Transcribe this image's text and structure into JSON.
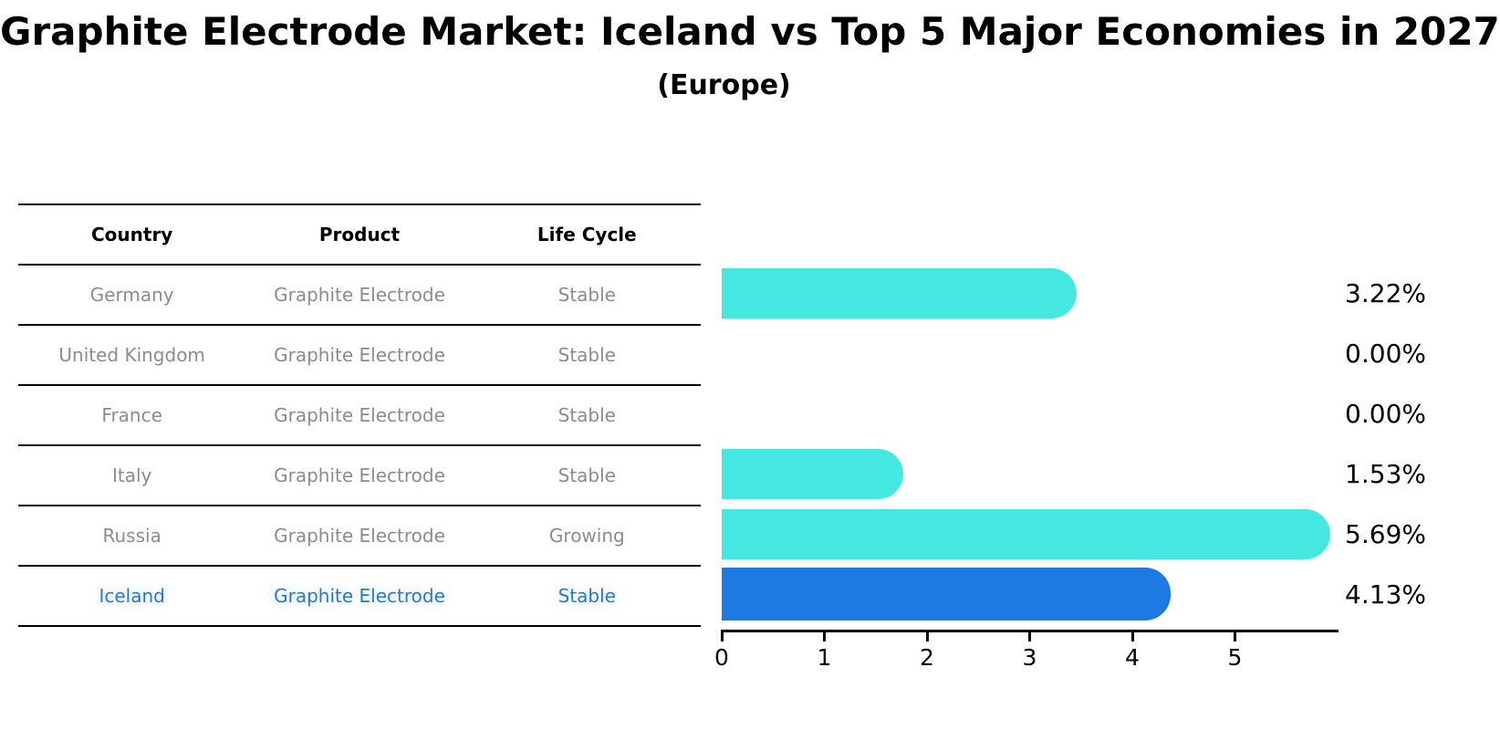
{
  "title": "Graphite Electrode Market: Iceland vs Top 5 Major Economies in 2027",
  "subtitle": "(Europe)",
  "table": {
    "headers": [
      "Country",
      "Product",
      "Life Cycle"
    ],
    "rows": [
      {
        "country": "Germany",
        "product": "Graphite Electrode",
        "life_cycle": "Stable",
        "highlight": false
      },
      {
        "country": "United Kingdom",
        "product": "Graphite Electrode",
        "life_cycle": "Stable",
        "highlight": false
      },
      {
        "country": "France",
        "product": "Graphite Electrode",
        "life_cycle": "Stable",
        "highlight": false
      },
      {
        "country": "Italy",
        "product": "Graphite Electrode",
        "life_cycle": "Stable",
        "highlight": false
      },
      {
        "country": "Russia",
        "product": "Graphite Electrode",
        "life_cycle": "Growing",
        "highlight": false
      },
      {
        "country": "Iceland",
        "product": "Graphite Electrode",
        "life_cycle": "Stable",
        "highlight": true
      }
    ]
  },
  "chart_data": {
    "type": "bar",
    "orientation": "horizontal",
    "title": "Graphite Electrode Market: Iceland vs Top 5 Major Economies in 2027",
    "subtitle": "(Europe)",
    "categories": [
      "Germany",
      "United Kingdom",
      "France",
      "Italy",
      "Russia",
      "Iceland"
    ],
    "values": [
      3.22,
      0.0,
      0.0,
      1.53,
      5.69,
      4.13
    ],
    "value_labels": [
      "3.22%",
      "0.00%",
      "0.00%",
      "1.53%",
      "5.69%",
      "4.13%"
    ],
    "x_ticks": [
      "0",
      "1",
      "2",
      "3",
      "4",
      "5"
    ],
    "xlim": [
      0,
      6
    ],
    "grid": false,
    "legend": false,
    "bar_color": "#45e7e1",
    "highlight_bar_color": "#1e7ae2",
    "highlight_index": 5,
    "highlight_text_color": "#2979c9"
  }
}
